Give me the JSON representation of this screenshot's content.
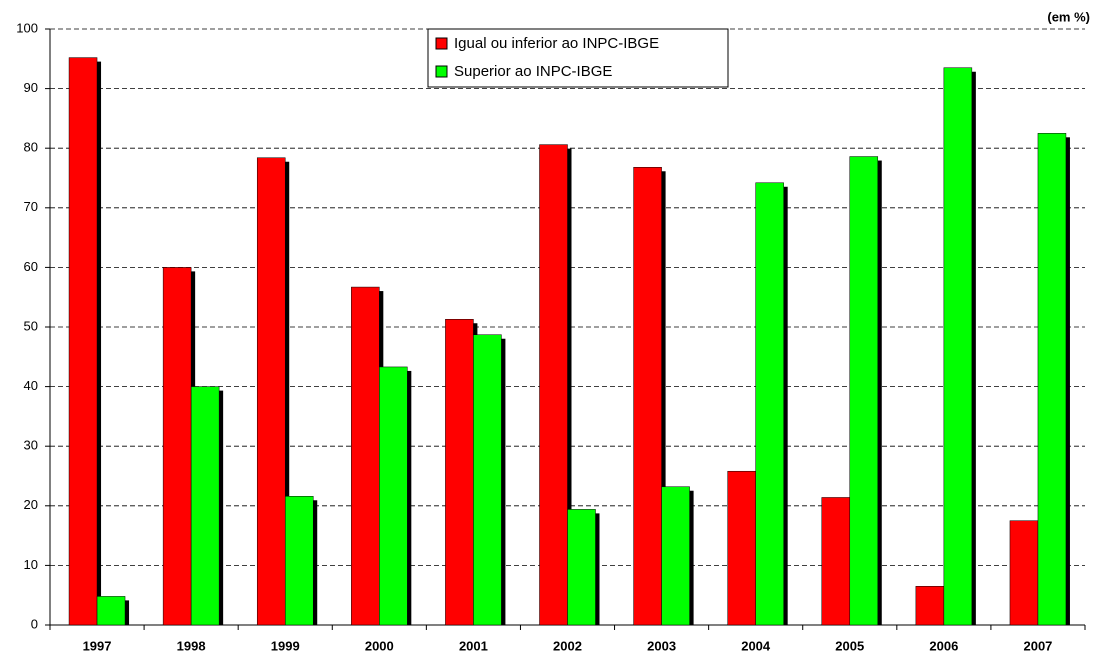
{
  "chart_data": {
    "type": "bar",
    "annotation": "(em %)",
    "categories": [
      "1997",
      "1998",
      "1999",
      "2000",
      "2001",
      "2002",
      "2003",
      "2004",
      "2005",
      "2006",
      "2007"
    ],
    "series": [
      {
        "name": "Igual ou inferior ao INPC-IBGE",
        "color": "#ff0000",
        "values": [
          95.2,
          60.0,
          78.4,
          56.7,
          51.3,
          80.6,
          76.8,
          25.8,
          21.4,
          6.5,
          17.5
        ]
      },
      {
        "name": "Superior ao INPC-IBGE",
        "color": "#00ff00",
        "values": [
          4.8,
          40.0,
          21.6,
          43.3,
          48.7,
          19.4,
          23.2,
          74.2,
          78.6,
          93.5,
          82.5
        ]
      }
    ],
    "ylim": [
      0,
      100
    ],
    "yticks": [
      0,
      10,
      20,
      30,
      40,
      50,
      60,
      70,
      80,
      90,
      100
    ],
    "grid": true,
    "legend": "top"
  }
}
